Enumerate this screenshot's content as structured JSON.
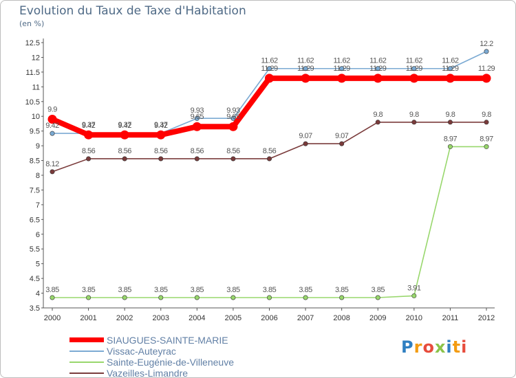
{
  "chart_data": {
    "type": "line",
    "title": "Evolution du Taux de Taxe d'Habitation",
    "subtitle": "(en %)",
    "xlabel": "",
    "ylabel": "",
    "x": [
      "2000",
      "2001",
      "2002",
      "2003",
      "2004",
      "2005",
      "2006",
      "2007",
      "2008",
      "2009",
      "2010",
      "2011",
      "2012"
    ],
    "ylim": [
      3.5,
      12.5
    ],
    "yticks": [
      "3.5",
      "4",
      "4.5",
      "5",
      "5.5",
      "6",
      "6.5",
      "7",
      "7.5",
      "8",
      "8.5",
      "9",
      "9.5",
      "10",
      "10.5",
      "11",
      "11.5",
      "12",
      "12.5"
    ],
    "grid": false,
    "legend_position": "bottom-left",
    "series": [
      {
        "name": "SIAUGUES-SAINTE-MARIE",
        "color": "#ff0000",
        "values": [
          9.9,
          9.37,
          9.37,
          9.37,
          9.65,
          9.65,
          11.29,
          11.29,
          11.29,
          11.29,
          11.29,
          11.29,
          11.29
        ],
        "labels": [
          "9.9",
          "9.37",
          "9.37",
          "9.37",
          "9.65",
          "9.65",
          "11.29",
          "11.29",
          "11.29",
          "11.29",
          "11.29",
          "11.29",
          "11.29"
        ]
      },
      {
        "name": "Vissac-Auteyrac",
        "color": "#7baad3",
        "values": [
          9.42,
          9.42,
          9.42,
          9.42,
          9.93,
          9.93,
          11.62,
          11.62,
          11.62,
          11.62,
          11.62,
          11.62,
          12.2
        ],
        "labels": [
          "9.42",
          "9.42",
          "9.42",
          "9.42",
          "9.93",
          "9.93",
          "11.62",
          "11.62",
          "11.62",
          "11.62",
          "11.62",
          "11.62",
          "12.2"
        ]
      },
      {
        "name": "Sainte-Eugénie-de-Villeneuve",
        "color": "#98d76c",
        "values": [
          3.85,
          3.85,
          3.85,
          3.85,
          3.85,
          3.85,
          3.85,
          3.85,
          3.85,
          3.85,
          3.91,
          8.97,
          8.97
        ],
        "labels": [
          "3.85",
          "3.85",
          "3.85",
          "3.85",
          "3.85",
          "3.85",
          "3.85",
          "3.85",
          "3.85",
          "3.85",
          "3.91",
          "8.97",
          "8.97"
        ]
      },
      {
        "name": "Vazeilles-Limandre",
        "color": "#7a3b3b",
        "values": [
          8.12,
          8.56,
          8.56,
          8.56,
          8.56,
          8.56,
          8.56,
          9.07,
          9.07,
          9.8,
          9.8,
          9.8,
          9.8
        ],
        "labels": [
          "8.12",
          "8.56",
          "8.56",
          "8.56",
          "8.56",
          "8.56",
          "8.56",
          "9.07",
          "9.07",
          "9.8",
          "9.8",
          "9.8",
          "9.8"
        ]
      }
    ]
  },
  "legend": {
    "items": [
      {
        "label": "SIAUGUES-SAINTE-MARIE",
        "color": "#ff0000"
      },
      {
        "label": "Vissac-Auteyrac",
        "color": "#7baad3"
      },
      {
        "label": "Sainte-Eugénie-de-Villeneuve",
        "color": "#98d76c"
      },
      {
        "label": "Vazeilles-Limandre",
        "color": "#7a3b3b"
      }
    ]
  },
  "logo": {
    "text": "Proxiti",
    "letters": [
      "P",
      "r",
      "o",
      "x",
      "i",
      "t",
      "i"
    ],
    "colors": [
      "#2f7fc1",
      "#f39c12",
      "#e74c3c",
      "#8bc34a",
      "#2f7fc1",
      "#f39c12",
      "#e74c3c"
    ]
  }
}
